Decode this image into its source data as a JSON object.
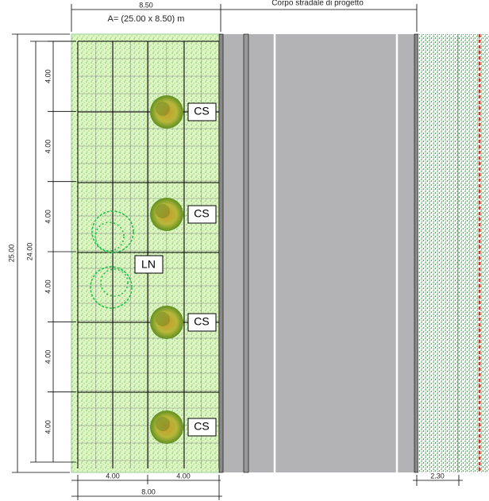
{
  "header": {
    "width_label": "8.50",
    "area_label": "A= (25.00 x 8.50) m",
    "road_label": "Corpo stradale di progetto"
  },
  "dimensions": {
    "total_length": "25.00",
    "grid_length": "24.00",
    "segments": [
      "4.00",
      "4.00",
      "4.00",
      "4.00",
      "4.00",
      "4.00"
    ],
    "bottom_segments": [
      "4.00",
      "4.00"
    ],
    "bottom_total": "8.00",
    "verge_width": "2.30"
  },
  "plants": {
    "trees": [
      "CS",
      "CS",
      "CS",
      "CS"
    ],
    "shrubs": "LN"
  }
}
